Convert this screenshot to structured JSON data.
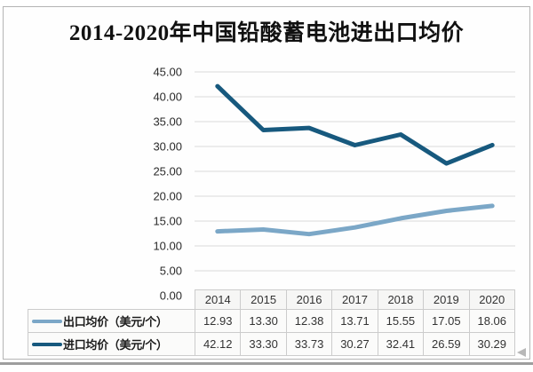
{
  "chart_data": {
    "type": "line",
    "title": "2014-2020年中国铅酸蓄电池进出口均价",
    "categories": [
      "2014",
      "2015",
      "2016",
      "2017",
      "2018",
      "2019",
      "2020"
    ],
    "series": [
      {
        "name": "出口均价（美元/个）",
        "values": [
          "12.93",
          "13.30",
          "12.38",
          "13.71",
          "15.55",
          "17.05",
          "18.06"
        ],
        "color": "#7ba7c7"
      },
      {
        "name": "进口均价（美元/个）",
        "values": [
          "42.12",
          "33.30",
          "33.73",
          "30.27",
          "32.41",
          "26.59",
          "30.29"
        ],
        "color": "#17597e"
      }
    ],
    "y_ticks": [
      "45.00",
      "40.00",
      "35.00",
      "30.00",
      "25.00",
      "20.00",
      "15.00",
      "10.00",
      "5.00",
      "0.00"
    ],
    "ylim": [
      0,
      45
    ],
    "grid": "horizontal",
    "legend_position": "table-left",
    "gridline_color": "#d9d9d9"
  }
}
